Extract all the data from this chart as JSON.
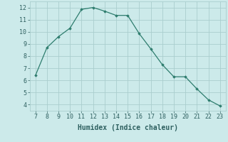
{
  "x": [
    7,
    8,
    9,
    10,
    11,
    12,
    13,
    14,
    15,
    16,
    17,
    18,
    19,
    20,
    21,
    22,
    23
  ],
  "y": [
    6.4,
    8.7,
    9.6,
    10.3,
    11.85,
    12.0,
    11.7,
    11.35,
    11.35,
    9.85,
    8.6,
    7.3,
    6.3,
    6.3,
    5.3,
    4.4,
    3.9
  ],
  "line_color": "#2e7d6e",
  "marker": "D",
  "marker_size": 1.8,
  "bg_color": "#cceaea",
  "grid_color": "#aacece",
  "xlabel": "Humidex (Indice chaleur)",
  "xlim": [
    6.5,
    23.5
  ],
  "ylim": [
    3.5,
    12.5
  ],
  "xticks": [
    7,
    8,
    9,
    10,
    11,
    12,
    13,
    14,
    15,
    16,
    17,
    18,
    19,
    20,
    21,
    22,
    23
  ],
  "yticks": [
    4,
    5,
    6,
    7,
    8,
    9,
    10,
    11,
    12
  ],
  "tick_fontsize": 6.0,
  "xlabel_fontsize": 7.0,
  "linewidth": 0.9
}
